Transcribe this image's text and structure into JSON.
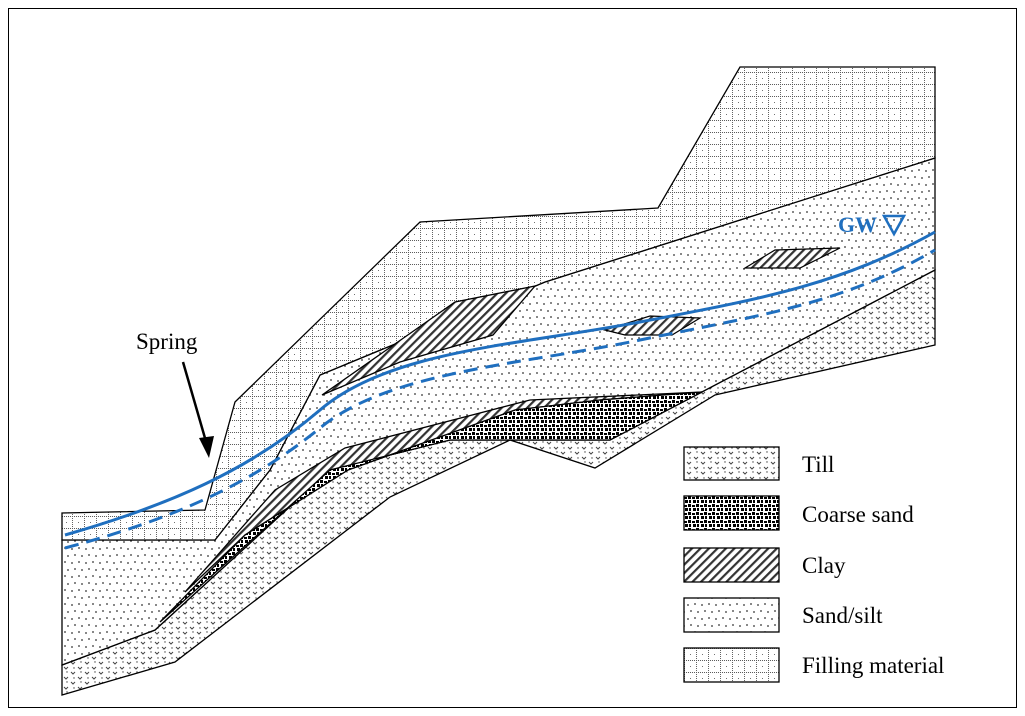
{
  "labels": {
    "spring": "Spring",
    "groundwater": "GW"
  },
  "legend": [
    {
      "key": "till",
      "label": "Till"
    },
    {
      "key": "coarse_sand",
      "label": "Coarse sand"
    },
    {
      "key": "clay",
      "label": "Clay"
    },
    {
      "key": "sand_silt",
      "label": "Sand/silt"
    },
    {
      "key": "filling",
      "label": "Filling material"
    }
  ],
  "colors": {
    "groundwater": "#1f6fbf",
    "outline": "#000000"
  }
}
